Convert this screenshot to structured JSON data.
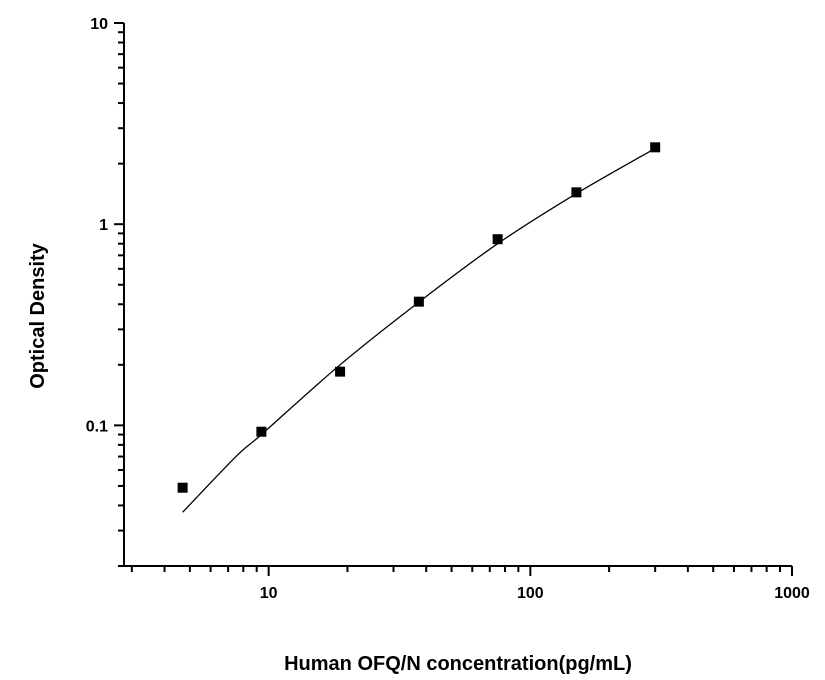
{
  "chart_data": {
    "type": "scatter",
    "title": "",
    "xlabel": "Human OFQ/N concentration(pg/mL)",
    "ylabel": "Optical Density",
    "xscale": "log",
    "yscale": "log",
    "xlim": [
      2.8,
      1000
    ],
    "ylim": [
      0.02,
      10
    ],
    "x_ticks": [
      10,
      100,
      1000
    ],
    "x_tick_labels": [
      "10",
      "100",
      "1000"
    ],
    "y_ticks": [
      0.1,
      1,
      10
    ],
    "y_tick_labels": [
      "0.1",
      "1",
      "10"
    ],
    "grid": false,
    "legend": null,
    "series": [
      {
        "name": "Standard points",
        "marker": "square",
        "color": "#000000",
        "x": [
          4.69,
          9.38,
          18.75,
          37.5,
          75,
          150,
          300
        ],
        "y": [
          0.049,
          0.093,
          0.185,
          0.412,
          0.842,
          1.44,
          2.41
        ]
      },
      {
        "name": "Fitted curve",
        "style": "line",
        "color": "#000000",
        "x": [
          4.69,
          7.5,
          9.38,
          18.75,
          37.5,
          75,
          150,
          300
        ],
        "y": [
          0.037,
          0.07,
          0.09,
          0.2,
          0.41,
          0.8,
          1.42,
          2.38
        ]
      }
    ]
  }
}
